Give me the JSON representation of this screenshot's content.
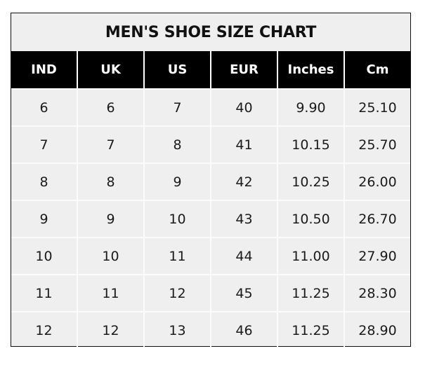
{
  "title": "MEN'S SHOE SIZE CHART",
  "headers": [
    "IND",
    "UK",
    "US",
    "EUR",
    "Inches",
    "Cm"
  ],
  "rows": [
    [
      "6",
      "6",
      "7",
      "40",
      "9.90",
      "25.10"
    ],
    [
      "7",
      "7",
      "8",
      "41",
      "10.15",
      "25.70"
    ],
    [
      "8",
      "8",
      "9",
      "42",
      "10.25",
      "26.00"
    ],
    [
      "9",
      "9",
      "10",
      "43",
      "10.50",
      "26.70"
    ],
    [
      "10",
      "10",
      "11",
      "44",
      "11.00",
      "27.90"
    ],
    [
      "11",
      "11",
      "12",
      "45",
      "11.25",
      "28.30"
    ],
    [
      "12",
      "12",
      "13",
      "46",
      "11.25",
      "28.90"
    ]
  ],
  "colors": {
    "header_bg": "#000000",
    "cell_bg": "#efefef",
    "grid": "#fbfbfb"
  }
}
